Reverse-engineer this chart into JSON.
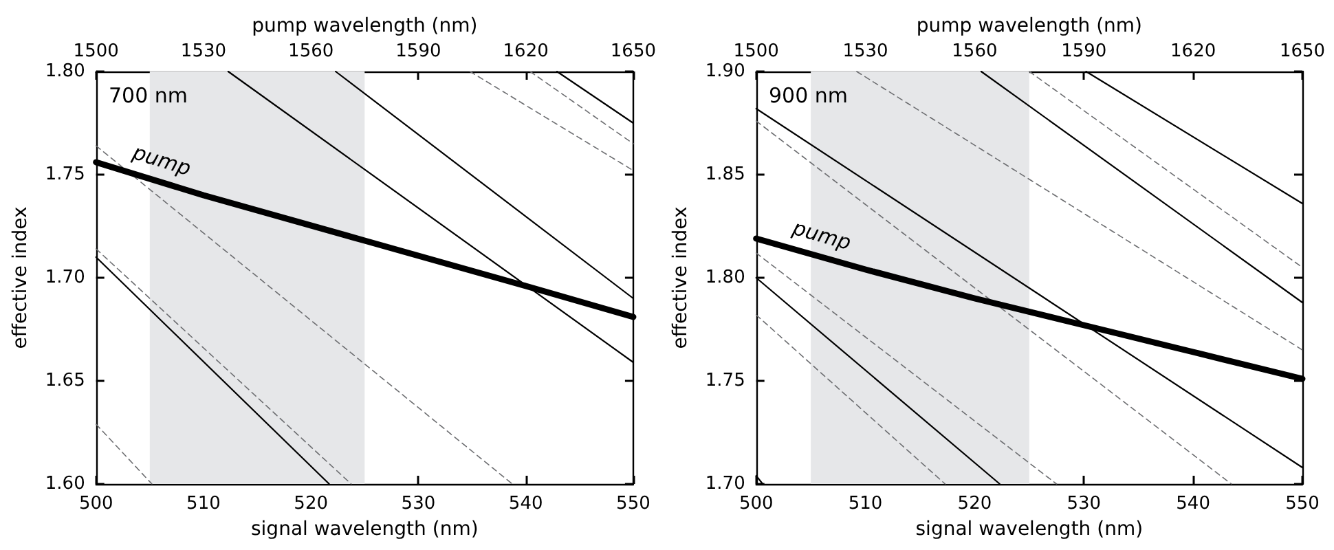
{
  "chart_data": [
    {
      "type": "line",
      "xlabel": "signal wavelength (nm)",
      "ylabel": "effective index",
      "x2label": "pump wavelength (nm)",
      "xlim": [
        500,
        550
      ],
      "xticks": [
        500,
        510,
        520,
        530,
        540,
        550
      ],
      "x2lim": [
        1500,
        1650
      ],
      "x2ticks": [
        1500,
        1530,
        1560,
        1590,
        1620,
        1650
      ],
      "ylim": [
        1.6,
        1.8
      ],
      "yticks": [
        {
          "value": 1.6,
          "label": "1.60"
        },
        {
          "value": 1.65,
          "label": "1.65"
        },
        {
          "value": 1.7,
          "label": "1.70"
        },
        {
          "value": 1.75,
          "label": "1.75"
        },
        {
          "value": 1.8,
          "label": "1.80"
        }
      ],
      "grid": false,
      "legend": false,
      "marker": "none",
      "annotations": [
        "700 nm"
      ],
      "bands": [
        {
          "axis": "x",
          "from": 505,
          "to": 525,
          "color": "#e6e7e9"
        }
      ],
      "series": [
        {
          "name": "pump",
          "color": "#000000",
          "x": [
            500,
            510,
            525,
            540,
            550
          ],
          "values": [
            1.756,
            1.74,
            1.718,
            1.696,
            1.681
          ],
          "line_style": "solid"
        },
        {
          "color": "#000000",
          "x": [
            512.3,
            550
          ],
          "values": [
            1.8,
            1.659
          ],
          "line_style": "solid"
        },
        {
          "color": "#000000",
          "x": [
            522.3,
            550
          ],
          "values": [
            1.8,
            1.69
          ],
          "line_style": "solid"
        },
        {
          "color": "#000000",
          "x": [
            542.9,
            550
          ],
          "values": [
            1.8,
            1.775
          ],
          "line_style": "solid"
        },
        {
          "color": "#000000",
          "x": [
            500,
            521.7
          ],
          "values": [
            1.71,
            1.6
          ],
          "line_style": "solid"
        },
        {
          "color": "#6d6e71",
          "x": [
            500,
            538.75
          ],
          "values": [
            1.764,
            1.6
          ],
          "line_style": "dashed"
        },
        {
          "color": "#6d6e71",
          "x": [
            500,
            523.75
          ],
          "values": [
            1.714,
            1.6
          ],
          "line_style": "dashed"
        },
        {
          "color": "#6d6e71",
          "x": [
            500,
            505.2
          ],
          "values": [
            1.629,
            1.6
          ],
          "line_style": "dashed"
        },
        {
          "color": "#6d6e71",
          "x": [
            534.8,
            550
          ],
          "values": [
            1.8,
            1.752
          ],
          "line_style": "dashed"
        },
        {
          "color": "#6d6e71",
          "x": [
            540.4,
            550
          ],
          "values": [
            1.8,
            1.765
          ],
          "line_style": "dashed"
        }
      ]
    },
    {
      "type": "line",
      "xlabel": "signal wavelength (nm)",
      "ylabel": "effective index",
      "x2label": "pump wavelength (nm)",
      "xlim": [
        500,
        550
      ],
      "xticks": [
        500,
        510,
        520,
        530,
        540,
        550
      ],
      "x2lim": [
        1500,
        1650
      ],
      "x2ticks": [
        1500,
        1530,
        1560,
        1590,
        1620,
        1650
      ],
      "ylim": [
        1.7,
        1.9
      ],
      "yticks": [
        {
          "value": 1.7,
          "label": "1.70"
        },
        {
          "value": 1.75,
          "label": "1.75"
        },
        {
          "value": 1.8,
          "label": "1.80"
        },
        {
          "value": 1.85,
          "label": "1.85"
        },
        {
          "value": 1.9,
          "label": "1.90"
        }
      ],
      "grid": false,
      "legend": false,
      "marker": "none",
      "annotations": [
        "900 nm"
      ],
      "bands": [
        {
          "axis": "x",
          "from": 505,
          "to": 525,
          "color": "#e6e7e9"
        }
      ],
      "series": [
        {
          "name": "pump",
          "color": "#000000",
          "x": [
            500,
            510,
            520,
            530,
            540,
            550
          ],
          "values": [
            1.819,
            1.804,
            1.79,
            1.777,
            1.764,
            1.751
          ],
          "line_style": "solid"
        },
        {
          "color": "#000000",
          "x": [
            500,
            550
          ],
          "values": [
            1.882,
            1.708
          ],
          "line_style": "solid"
        },
        {
          "color": "#000000",
          "x": [
            520.6,
            550
          ],
          "values": [
            1.9,
            1.788
          ],
          "line_style": "solid"
        },
        {
          "color": "#000000",
          "x": [
            530.2,
            550
          ],
          "values": [
            1.9,
            1.836
          ],
          "line_style": "solid"
        },
        {
          "color": "#000000",
          "x": [
            500,
            522.3
          ],
          "values": [
            1.8,
            1.7
          ],
          "line_style": "solid"
        },
        {
          "color": "#000000",
          "x": [
            500,
            500.6
          ],
          "values": [
            1.704,
            1.7
          ],
          "line_style": "solid"
        },
        {
          "color": "#6d6e71",
          "x": [
            500,
            543.5
          ],
          "values": [
            1.876,
            1.7
          ],
          "line_style": "dashed"
        },
        {
          "color": "#6d6e71",
          "x": [
            500,
            527.5
          ],
          "values": [
            1.812,
            1.7
          ],
          "line_style": "dashed"
        },
        {
          "color": "#6d6e71",
          "x": [
            500,
            517.3
          ],
          "values": [
            1.782,
            1.7
          ],
          "line_style": "dashed"
        },
        {
          "color": "#6d6e71",
          "x": [
            509.2,
            550
          ],
          "values": [
            1.9,
            1.765
          ],
          "line_style": "dashed"
        },
        {
          "color": "#6d6e71",
          "x": [
            525,
            550
          ],
          "values": [
            1.9,
            1.805
          ],
          "line_style": "dashed"
        }
      ]
    }
  ]
}
